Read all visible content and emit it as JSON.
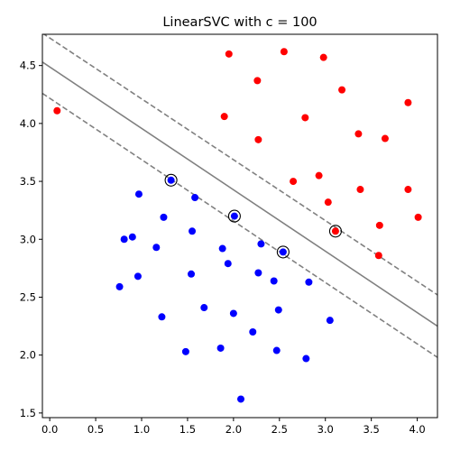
{
  "chart_data": {
    "type": "scatter",
    "title": "LinearSVC with c = 100",
    "xlabel": "",
    "ylabel": "",
    "xlim": [
      -0.08,
      4.22
    ],
    "ylim": [
      1.46,
      4.77
    ],
    "x_ticks": [
      "0.0",
      "0.5",
      "1.0",
      "1.5",
      "2.0",
      "2.5",
      "3.0",
      "3.5",
      "4.0"
    ],
    "y_ticks": [
      "1.5",
      "2.0",
      "2.5",
      "3.0",
      "3.5",
      "4.0",
      "4.5"
    ],
    "grid": false,
    "colors": {
      "class_0": "#0000ff",
      "class_1": "#ff0000",
      "boundary": "#808080",
      "support_ring": "#000000"
    },
    "decision_boundary": {
      "type": "solid",
      "points": [
        [
          -0.08,
          4.53
        ],
        [
          4.22,
          2.25
        ]
      ]
    },
    "margins": [
      {
        "type": "dashed",
        "points": [
          [
            -0.08,
            4.78
          ],
          [
            4.22,
            2.52
          ]
        ]
      },
      {
        "type": "dashed",
        "points": [
          [
            -0.08,
            4.26
          ],
          [
            4.22,
            1.98
          ]
        ]
      }
    ],
    "series": [
      {
        "class": 0,
        "color": "#0000ff",
        "points": [
          [
            1.32,
            3.51
          ],
          [
            0.97,
            3.39
          ],
          [
            1.58,
            3.36
          ],
          [
            1.24,
            3.19
          ],
          [
            2.01,
            3.2
          ],
          [
            0.81,
            3.0
          ],
          [
            0.9,
            3.02
          ],
          [
            1.55,
            3.07
          ],
          [
            2.3,
            2.96
          ],
          [
            1.16,
            2.93
          ],
          [
            1.88,
            2.92
          ],
          [
            1.94,
            2.79
          ],
          [
            2.54,
            2.89
          ],
          [
            0.96,
            2.68
          ],
          [
            1.54,
            2.7
          ],
          [
            2.27,
            2.71
          ],
          [
            0.76,
            2.59
          ],
          [
            2.44,
            2.64
          ],
          [
            2.82,
            2.63
          ],
          [
            1.68,
            2.41
          ],
          [
            2.49,
            2.39
          ],
          [
            2.0,
            2.36
          ],
          [
            1.22,
            2.33
          ],
          [
            3.05,
            2.3
          ],
          [
            2.21,
            2.2
          ],
          [
            1.48,
            2.03
          ],
          [
            1.86,
            2.06
          ],
          [
            2.47,
            2.04
          ],
          [
            2.79,
            1.97
          ],
          [
            2.08,
            1.62
          ]
        ]
      },
      {
        "class": 1,
        "color": "#ff0000",
        "points": [
          [
            1.95,
            4.6
          ],
          [
            2.55,
            4.62
          ],
          [
            2.98,
            4.57
          ],
          [
            2.26,
            4.37
          ],
          [
            3.18,
            4.29
          ],
          [
            0.08,
            4.11
          ],
          [
            3.9,
            4.18
          ],
          [
            1.9,
            4.06
          ],
          [
            2.78,
            4.05
          ],
          [
            3.36,
            3.91
          ],
          [
            2.27,
            3.86
          ],
          [
            3.65,
            3.87
          ],
          [
            2.93,
            3.55
          ],
          [
            2.65,
            3.5
          ],
          [
            3.38,
            3.43
          ],
          [
            3.9,
            3.43
          ],
          [
            3.03,
            3.32
          ],
          [
            4.01,
            3.19
          ],
          [
            3.59,
            3.12
          ],
          [
            3.11,
            3.07
          ],
          [
            3.58,
            2.86
          ]
        ]
      }
    ],
    "support_vectors": [
      [
        1.32,
        3.51
      ],
      [
        2.01,
        3.2
      ],
      [
        2.54,
        2.89
      ],
      [
        3.11,
        3.07
      ]
    ]
  }
}
